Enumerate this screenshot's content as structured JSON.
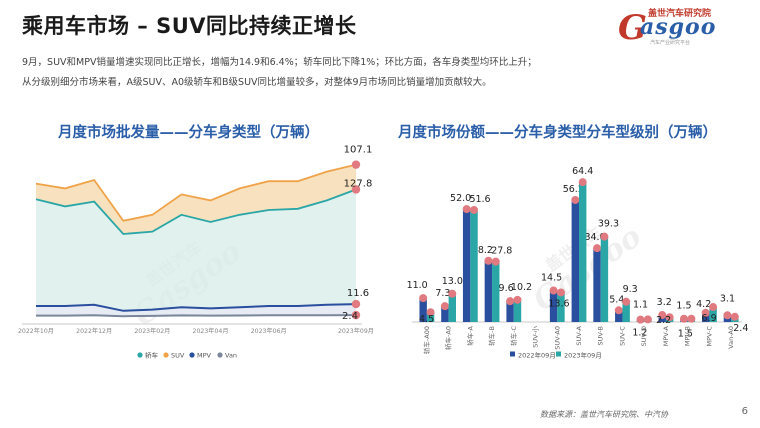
{
  "header": {
    "title": "乘用车市场 – SUV同比持续正增长",
    "logo_text": "asgoo",
    "logo_brand": "盖世汽车研究院",
    "logo_sub": "汽车产业研究平台"
  },
  "description": [
    "9月，SUV和MPV销量增速实现同比正增长，增幅为14.9和6.4%；轿车同比下降1%；环比方面，各车身类型均环比上升；",
    "从分级别细分市场来看，A级SUV、A0级轿车和B级SUV同比增量较多，对整体9月市场同比销量增加贡献较大。"
  ],
  "chart_data": [
    {
      "type": "area",
      "title": "月度市场批发量——分车身类型（万辆）",
      "x": [
        "2022年10月",
        "2022年11月",
        "2022年12月",
        "2023年01月",
        "2023年02月",
        "2023年03月",
        "2023年04月",
        "2023年05月",
        "2023年06月",
        "2023年07月",
        "2023年08月",
        "2023年09月"
      ],
      "tick_labels": [
        "2022年10月",
        "2022年12月",
        "2023年02月",
        "2023年04月",
        "2023年06月",
        "2023年09月"
      ],
      "ylim": [
        0,
        140
      ],
      "series": [
        {
          "name": "轿车",
          "color": "#2aa6a6",
          "values": [
            99,
            93,
            97,
            70,
            72,
            86,
            80,
            86,
            90,
            91,
            98,
            107.1
          ]
        },
        {
          "name": "SUV",
          "color": "#f0a248",
          "values": [
            112,
            108,
            115,
            81,
            86,
            103,
            98,
            108,
            114,
            114,
            122,
            127.8
          ]
        },
        {
          "name": "MPV",
          "color": "#2a5ea8",
          "values": [
            10,
            10,
            11,
            6,
            7,
            9,
            8,
            9,
            10,
            10,
            11,
            11.6
          ]
        },
        {
          "name": "Van",
          "color": "#7a869a",
          "values": [
            2,
            2,
            2.3,
            1.5,
            1.8,
            2.2,
            2,
            2.1,
            2.3,
            2.3,
            2.3,
            2.4
          ]
        }
      ],
      "end_labels": [
        "127.8",
        "107.1",
        "11.6",
        "2.4"
      ]
    },
    {
      "type": "bar",
      "title": "月度市场份额——分车身类型分车型级别（万辆）",
      "categories": [
        "轿车-A00",
        "轿车-A0",
        "轿车-A",
        "轿车-B",
        "轿车-C",
        "SUV-小",
        "SUV-A0",
        "SUV-A",
        "SUV-B",
        "SUV-C",
        "SUV-D",
        "MPV-A",
        "MPV-B",
        "MPV-C",
        "Van-A0"
      ],
      "series": [
        {
          "name": "2022年09月",
          "color": "#2a4f9e",
          "values": [
            11.0,
            7.3,
            52.0,
            28.2,
            9.6,
            0,
            14.5,
            56.2,
            34.0,
            5.4,
            1.1,
            3.2,
            1.5,
            4.2,
            3.1
          ]
        },
        {
          "name": "2023年09月",
          "color": "#2aa6a6",
          "values": [
            4.5,
            13.0,
            51.6,
            27.8,
            10.2,
            0,
            13.6,
            64.4,
            39.3,
            9.3,
            1.2,
            2.2,
            1.5,
            6.9,
            2.4
          ]
        }
      ],
      "labels_a": [
        "11.0",
        "7.3",
        "52.0",
        "28.2",
        "9.6",
        "",
        "14.5",
        "56.2",
        "34.0",
        "5.4",
        "1.1",
        "3.2",
        "1.5",
        "4.2",
        "3.1"
      ],
      "labels_b": [
        "4.5",
        "13.0",
        "51.6",
        "27.8",
        "10.2",
        "",
        "13.6",
        "64.4",
        "39.3",
        "9.3",
        "1.2",
        "2.2",
        "1.5",
        "6.9",
        "2.4"
      ],
      "ylim": [
        0,
        70
      ]
    }
  ],
  "watermark": {
    "line1": "盖世汽车",
    "line2": "asgoo"
  },
  "footer": {
    "source": "数据来源：盖世汽车研究院、中汽协",
    "page": "6"
  }
}
